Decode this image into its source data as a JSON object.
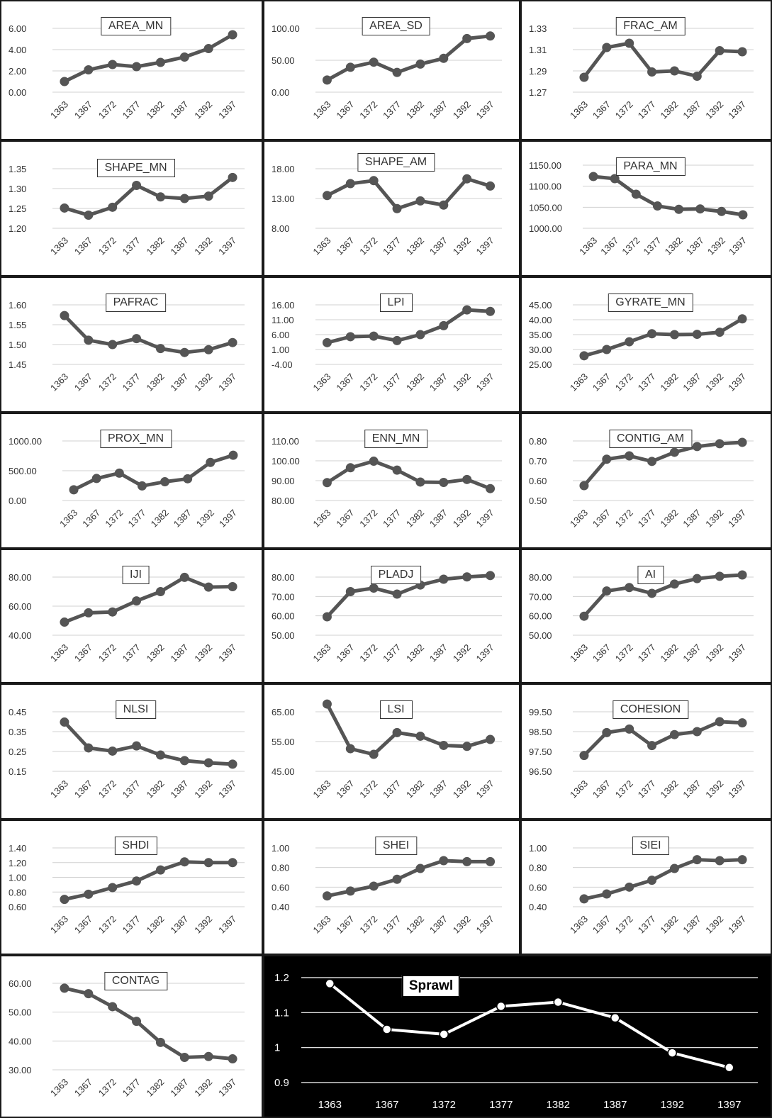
{
  "years": [
    "1363",
    "1367",
    "1372",
    "1377",
    "1382",
    "1387",
    "1392",
    "1397"
  ],
  "colors": {
    "line": "#555555",
    "grid": "#d0d0d0",
    "text": "#333333",
    "dark_bg": "#000000",
    "dark_line": "#ffffff"
  },
  "chart_data": [
    {
      "type": "line",
      "title": "AREA_MN",
      "yticks": [
        "0.00",
        "2.00",
        "4.00",
        "6.00"
      ],
      "ylim": [
        0,
        6
      ],
      "values": [
        1.0,
        2.1,
        2.6,
        2.4,
        2.8,
        3.3,
        4.1,
        5.4
      ]
    },
    {
      "type": "line",
      "title": "AREA_SD",
      "yticks": [
        "0.00",
        "50.00",
        "100.00"
      ],
      "ylim": [
        0,
        100
      ],
      "values": [
        19,
        39,
        47,
        31,
        44,
        53,
        84,
        88
      ]
    },
    {
      "type": "line",
      "title": "FRAC_AM",
      "yticks": [
        "1.27",
        "1.29",
        "1.31",
        "1.33"
      ],
      "ylim": [
        1.27,
        1.33
      ],
      "values": [
        1.284,
        1.312,
        1.316,
        1.289,
        1.29,
        1.285,
        1.309,
        1.308
      ]
    },
    {
      "type": "line",
      "title": "SHAPE_MN",
      "yticks": [
        "1.20",
        "1.25",
        "1.30",
        "1.35"
      ],
      "ylim": [
        1.2,
        1.35
      ],
      "values": [
        1.251,
        1.233,
        1.253,
        1.308,
        1.279,
        1.275,
        1.281,
        1.328
      ]
    },
    {
      "type": "line",
      "title": "SHAPE_AM",
      "yticks": [
        "8.00",
        "13.00",
        "18.00"
      ],
      "ylim": [
        8,
        18
      ],
      "values": [
        13.5,
        15.5,
        16.0,
        11.3,
        12.6,
        11.9,
        16.3,
        15.1
      ]
    },
    {
      "type": "line",
      "title": "PARA_MN",
      "yticks": [
        "1000.00",
        "1050.00",
        "1100.00",
        "1150.00"
      ],
      "ylim": [
        1000,
        1150
      ],
      "values": [
        1123,
        1118,
        1081,
        1053,
        1045,
        1046,
        1040,
        1032
      ]
    },
    {
      "type": "line",
      "title": "PAFRAC",
      "yticks": [
        "1.45",
        "1.50",
        "1.55",
        "1.60"
      ],
      "ylim": [
        1.45,
        1.6
      ],
      "values": [
        1.573,
        1.511,
        1.5,
        1.515,
        1.49,
        1.48,
        1.487,
        1.505
      ]
    },
    {
      "type": "line",
      "title": "LPI",
      "yticks": [
        "-4.00",
        "1.00",
        "6.00",
        "11.00",
        "16.00"
      ],
      "ylim": [
        -4,
        16
      ],
      "values": [
        3.3,
        5.3,
        5.5,
        4.0,
        6.0,
        9.0,
        14.3,
        13.8
      ]
    },
    {
      "type": "line",
      "title": "GYRATE_MN",
      "yticks": [
        "25.00",
        "30.00",
        "35.00",
        "40.00",
        "45.00"
      ],
      "ylim": [
        25,
        45
      ],
      "values": [
        27.9,
        30.0,
        32.6,
        35.3,
        35.0,
        35.1,
        35.8,
        40.3
      ]
    },
    {
      "type": "line",
      "title": "PROX_MN",
      "yticks": [
        "0.00",
        "500.00",
        "1000.00"
      ],
      "ylim": [
        0,
        1000
      ],
      "values": [
        180,
        370,
        460,
        245,
        315,
        365,
        640,
        760
      ]
    },
    {
      "type": "line",
      "title": "ENN_MN",
      "yticks": [
        "80.00",
        "90.00",
        "100.00",
        "110.00"
      ],
      "ylim": [
        80,
        110
      ],
      "values": [
        89.0,
        96.5,
        99.8,
        95.3,
        89.3,
        89.1,
        90.6,
        86.0
      ]
    },
    {
      "type": "line",
      "title": "CONTIG_AM",
      "yticks": [
        "0.50",
        "0.60",
        "0.70",
        "0.80"
      ],
      "ylim": [
        0.5,
        0.8
      ],
      "values": [
        0.575,
        0.708,
        0.725,
        0.697,
        0.743,
        0.772,
        0.786,
        0.793
      ]
    },
    {
      "type": "line",
      "title": "IJI",
      "yticks": [
        "40.00",
        "60.00",
        "80.00"
      ],
      "ylim": [
        40,
        80
      ],
      "values": [
        49.0,
        55.4,
        56.0,
        63.6,
        70.0,
        79.8,
        73.1,
        73.4
      ]
    },
    {
      "type": "line",
      "title": "PLADJ",
      "yticks": [
        "50.00",
        "60.00",
        "70.00",
        "80.00"
      ],
      "ylim": [
        50,
        80
      ],
      "values": [
        59.5,
        72.5,
        74.3,
        71.2,
        75.9,
        78.9,
        80.1,
        80.8
      ]
    },
    {
      "type": "line",
      "title": "AI",
      "yticks": [
        "50.00",
        "60.00",
        "70.00",
        "80.00"
      ],
      "ylim": [
        50,
        80
      ],
      "values": [
        59.8,
        72.8,
        74.6,
        71.6,
        76.4,
        79.2,
        80.4,
        81.1
      ]
    },
    {
      "type": "line",
      "title": "NLSI",
      "yticks": [
        "0.15",
        "0.25",
        "0.35",
        "0.45"
      ],
      "ylim": [
        0.15,
        0.45
      ],
      "values": [
        0.398,
        0.268,
        0.252,
        0.278,
        0.232,
        0.204,
        0.193,
        0.186
      ]
    },
    {
      "type": "line",
      "title": "LSI",
      "yticks": [
        "45.00",
        "55.00",
        "65.00"
      ],
      "ylim": [
        45,
        65
      ],
      "values": [
        67.6,
        52.6,
        50.7,
        58.0,
        56.8,
        53.7,
        53.4,
        55.7
      ]
    },
    {
      "type": "line",
      "title": "COHESION",
      "yticks": [
        "96.50",
        "97.50",
        "98.50",
        "99.50"
      ],
      "ylim": [
        96.5,
        99.5
      ],
      "values": [
        97.3,
        98.45,
        98.63,
        97.8,
        98.35,
        98.5,
        99.0,
        98.94
      ]
    },
    {
      "type": "line",
      "title": "SHDI",
      "yticks": [
        "0.60",
        "0.80",
        "1.00",
        "1.20",
        "1.40"
      ],
      "ylim": [
        0.6,
        1.4
      ],
      "values": [
        0.7,
        0.77,
        0.86,
        0.95,
        1.1,
        1.21,
        1.2,
        1.2
      ]
    },
    {
      "type": "line",
      "title": "SHEI",
      "yticks": [
        "0.40",
        "0.60",
        "0.80",
        "1.00"
      ],
      "ylim": [
        0.4,
        1.0
      ],
      "values": [
        0.51,
        0.56,
        0.61,
        0.68,
        0.79,
        0.87,
        0.86,
        0.86
      ]
    },
    {
      "type": "line",
      "title": "SIEI",
      "yticks": [
        "0.40",
        "0.60",
        "0.80",
        "1.00"
      ],
      "ylim": [
        0.4,
        1.0
      ],
      "values": [
        0.48,
        0.53,
        0.6,
        0.67,
        0.79,
        0.88,
        0.87,
        0.88
      ]
    },
    {
      "type": "line",
      "title": "CONTAG",
      "yticks": [
        "30.00",
        "40.00",
        "50.00",
        "60.00"
      ],
      "ylim": [
        30,
        60
      ],
      "values": [
        58.3,
        56.4,
        51.9,
        46.8,
        39.5,
        34.3,
        34.6,
        33.8
      ]
    },
    {
      "type": "line",
      "title": "Sprawl",
      "dark": true,
      "yticks": [
        "0.9",
        "1",
        "1.1",
        "1.2"
      ],
      "ylim": [
        0.9,
        1.2
      ],
      "values": [
        1.183,
        1.052,
        1.038,
        1.118,
        1.13,
        1.085,
        0.985,
        0.943
      ]
    }
  ]
}
